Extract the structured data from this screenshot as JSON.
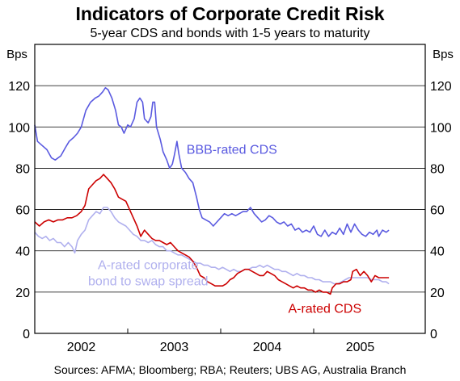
{
  "chart_data": {
    "type": "line",
    "title": "Indicators of Corporate Credit Risk",
    "subtitle": "5-year CDS and bonds with 1-5 years to maturity",
    "ylabel_left": "Bps",
    "ylabel_right": "Bps",
    "ylim": [
      0,
      140
    ],
    "yticks": [
      0,
      20,
      40,
      60,
      80,
      100,
      120
    ],
    "xlim": [
      2001.5,
      2005.7
    ],
    "x_category_labels": [
      {
        "label": "2002",
        "x": 2002.0
      },
      {
        "label": "2003",
        "x": 2003.0
      },
      {
        "label": "2004",
        "x": 2004.0
      },
      {
        "label": "2005",
        "x": 2005.0
      }
    ],
    "year_boundaries": [
      2002.5,
      2003.5,
      2004.5
    ],
    "grid": true,
    "series": [
      {
        "name": "BBB-rated CDS",
        "color": "#5a5ae0",
        "points": [
          [
            2001.5,
            101
          ],
          [
            2001.53,
            93
          ],
          [
            2001.58,
            91
          ],
          [
            2001.63,
            89
          ],
          [
            2001.68,
            85
          ],
          [
            2001.72,
            84
          ],
          [
            2001.78,
            86
          ],
          [
            2001.83,
            90
          ],
          [
            2001.87,
            93
          ],
          [
            2001.92,
            95
          ],
          [
            2001.96,
            97
          ],
          [
            2002.0,
            100
          ],
          [
            2002.05,
            108
          ],
          [
            2002.1,
            112
          ],
          [
            2002.15,
            114
          ],
          [
            2002.19,
            115
          ],
          [
            2002.23,
            117
          ],
          [
            2002.26,
            119
          ],
          [
            2002.29,
            118
          ],
          [
            2002.33,
            114
          ],
          [
            2002.37,
            108
          ],
          [
            2002.4,
            101
          ],
          [
            2002.43,
            100
          ],
          [
            2002.46,
            97
          ],
          [
            2002.5,
            101
          ],
          [
            2002.53,
            100
          ],
          [
            2002.57,
            104
          ],
          [
            2002.6,
            112
          ],
          [
            2002.63,
            114
          ],
          [
            2002.66,
            112
          ],
          [
            2002.68,
            104
          ],
          [
            2002.72,
            102
          ],
          [
            2002.75,
            105
          ],
          [
            2002.77,
            112
          ],
          [
            2002.79,
            112
          ],
          [
            2002.81,
            100
          ],
          [
            2002.85,
            94
          ],
          [
            2002.88,
            88
          ],
          [
            2002.92,
            84
          ],
          [
            2002.95,
            80
          ],
          [
            2002.98,
            82
          ],
          [
            2003.0,
            86
          ],
          [
            2003.03,
            93
          ],
          [
            2003.05,
            87
          ],
          [
            2003.08,
            80
          ],
          [
            2003.12,
            78
          ],
          [
            2003.16,
            75
          ],
          [
            2003.2,
            73
          ],
          [
            2003.24,
            66
          ],
          [
            2003.27,
            60
          ],
          [
            2003.3,
            56
          ],
          [
            2003.34,
            55
          ],
          [
            2003.38,
            54
          ],
          [
            2003.42,
            52
          ],
          [
            2003.46,
            54
          ],
          [
            2003.5,
            56
          ],
          [
            2003.54,
            58
          ],
          [
            2003.58,
            57
          ],
          [
            2003.62,
            58
          ],
          [
            2003.66,
            57
          ],
          [
            2003.7,
            58
          ],
          [
            2003.74,
            59
          ],
          [
            2003.78,
            59
          ],
          [
            2003.82,
            61
          ],
          [
            2003.86,
            58
          ],
          [
            2003.9,
            56
          ],
          [
            2003.94,
            54
          ],
          [
            2003.98,
            55
          ],
          [
            2004.02,
            57
          ],
          [
            2004.06,
            56
          ],
          [
            2004.1,
            54
          ],
          [
            2004.14,
            53
          ],
          [
            2004.18,
            54
          ],
          [
            2004.22,
            52
          ],
          [
            2004.26,
            53
          ],
          [
            2004.3,
            50
          ],
          [
            2004.34,
            51
          ],
          [
            2004.38,
            49
          ],
          [
            2004.42,
            50
          ],
          [
            2004.46,
            49
          ],
          [
            2004.5,
            52
          ],
          [
            2004.54,
            48
          ],
          [
            2004.58,
            47
          ],
          [
            2004.62,
            50
          ],
          [
            2004.66,
            47
          ],
          [
            2004.7,
            49
          ],
          [
            2004.74,
            48
          ],
          [
            2004.78,
            51
          ],
          [
            2004.82,
            48
          ],
          [
            2004.86,
            53
          ],
          [
            2004.9,
            49
          ],
          [
            2004.94,
            53
          ],
          [
            2004.98,
            50
          ],
          [
            2005.02,
            48
          ],
          [
            2005.06,
            47
          ],
          [
            2005.1,
            49
          ],
          [
            2005.14,
            48
          ],
          [
            2005.18,
            50
          ],
          [
            2005.2,
            47
          ],
          [
            2005.24,
            50
          ],
          [
            2005.28,
            49
          ],
          [
            2005.31,
            50
          ]
        ]
      },
      {
        "name": "A-rated CDS",
        "color": "#cc0000",
        "points": [
          [
            2001.5,
            54
          ],
          [
            2001.55,
            52
          ],
          [
            2001.6,
            54
          ],
          [
            2001.65,
            55
          ],
          [
            2001.7,
            54
          ],
          [
            2001.75,
            55
          ],
          [
            2001.8,
            55
          ],
          [
            2001.85,
            56
          ],
          [
            2001.9,
            56
          ],
          [
            2001.95,
            57
          ],
          [
            2002.0,
            59
          ],
          [
            2002.04,
            62
          ],
          [
            2002.08,
            70
          ],
          [
            2002.12,
            72
          ],
          [
            2002.16,
            74
          ],
          [
            2002.2,
            75
          ],
          [
            2002.24,
            77
          ],
          [
            2002.28,
            75
          ],
          [
            2002.32,
            73
          ],
          [
            2002.36,
            70
          ],
          [
            2002.4,
            66
          ],
          [
            2002.44,
            65
          ],
          [
            2002.48,
            64
          ],
          [
            2002.52,
            60
          ],
          [
            2002.56,
            56
          ],
          [
            2002.6,
            52
          ],
          [
            2002.64,
            47
          ],
          [
            2002.68,
            50
          ],
          [
            2002.72,
            48
          ],
          [
            2002.76,
            46
          ],
          [
            2002.8,
            45
          ],
          [
            2002.84,
            45
          ],
          [
            2002.88,
            44
          ],
          [
            2002.92,
            43
          ],
          [
            2002.96,
            44
          ],
          [
            2003.0,
            42
          ],
          [
            2003.04,
            40
          ],
          [
            2003.08,
            39
          ],
          [
            2003.12,
            38
          ],
          [
            2003.16,
            37
          ],
          [
            2003.2,
            35
          ],
          [
            2003.24,
            32
          ],
          [
            2003.28,
            28
          ],
          [
            2003.32,
            27
          ],
          [
            2003.36,
            25
          ],
          [
            2003.4,
            24
          ],
          [
            2003.44,
            23
          ],
          [
            2003.48,
            23
          ],
          [
            2003.52,
            23
          ],
          [
            2003.56,
            24
          ],
          [
            2003.6,
            26
          ],
          [
            2003.64,
            27
          ],
          [
            2003.68,
            29
          ],
          [
            2003.72,
            30
          ],
          [
            2003.76,
            31
          ],
          [
            2003.8,
            31
          ],
          [
            2003.84,
            30
          ],
          [
            2003.88,
            29
          ],
          [
            2003.92,
            28
          ],
          [
            2003.96,
            28
          ],
          [
            2004.0,
            30
          ],
          [
            2004.04,
            29
          ],
          [
            2004.08,
            28
          ],
          [
            2004.12,
            26
          ],
          [
            2004.16,
            25
          ],
          [
            2004.2,
            24
          ],
          [
            2004.24,
            23
          ],
          [
            2004.28,
            22
          ],
          [
            2004.32,
            23
          ],
          [
            2004.36,
            22
          ],
          [
            2004.4,
            22
          ],
          [
            2004.44,
            21
          ],
          [
            2004.48,
            21
          ],
          [
            2004.52,
            20
          ],
          [
            2004.56,
            21
          ],
          [
            2004.6,
            20
          ],
          [
            2004.64,
            20
          ],
          [
            2004.68,
            19
          ],
          [
            2004.7,
            22
          ],
          [
            2004.74,
            24
          ],
          [
            2004.78,
            24
          ],
          [
            2004.82,
            25
          ],
          [
            2004.86,
            25
          ],
          [
            2004.9,
            26
          ],
          [
            2004.92,
            30
          ],
          [
            2004.96,
            31
          ],
          [
            2005.0,
            28
          ],
          [
            2005.04,
            30
          ],
          [
            2005.08,
            28
          ],
          [
            2005.12,
            25
          ],
          [
            2005.16,
            28
          ],
          [
            2005.2,
            27
          ],
          [
            2005.24,
            27
          ],
          [
            2005.28,
            27
          ],
          [
            2005.31,
            27
          ]
        ]
      },
      {
        "name": "A-rated corporate bond to swap spread",
        "color": "#b0b0ee",
        "points": [
          [
            2001.5,
            49
          ],
          [
            2001.54,
            47
          ],
          [
            2001.58,
            46
          ],
          [
            2001.62,
            47
          ],
          [
            2001.66,
            45
          ],
          [
            2001.7,
            46
          ],
          [
            2001.74,
            44
          ],
          [
            2001.78,
            44
          ],
          [
            2001.82,
            42
          ],
          [
            2001.86,
            44
          ],
          [
            2001.9,
            42
          ],
          [
            2001.93,
            39
          ],
          [
            2001.96,
            45
          ],
          [
            2002.0,
            48
          ],
          [
            2002.04,
            50
          ],
          [
            2002.08,
            55
          ],
          [
            2002.12,
            57
          ],
          [
            2002.16,
            59
          ],
          [
            2002.2,
            58
          ],
          [
            2002.24,
            61
          ],
          [
            2002.28,
            61
          ],
          [
            2002.32,
            59
          ],
          [
            2002.36,
            56
          ],
          [
            2002.4,
            54
          ],
          [
            2002.44,
            53
          ],
          [
            2002.48,
            52
          ],
          [
            2002.52,
            50
          ],
          [
            2002.56,
            48
          ],
          [
            2002.6,
            47
          ],
          [
            2002.64,
            45
          ],
          [
            2002.68,
            45
          ],
          [
            2002.72,
            44
          ],
          [
            2002.76,
            45
          ],
          [
            2002.8,
            43
          ],
          [
            2002.84,
            42
          ],
          [
            2002.88,
            42
          ],
          [
            2002.92,
            40
          ],
          [
            2002.96,
            40
          ],
          [
            2003.0,
            39
          ],
          [
            2003.04,
            38
          ],
          [
            2003.08,
            38
          ],
          [
            2003.12,
            37
          ],
          [
            2003.16,
            36
          ],
          [
            2003.2,
            35
          ],
          [
            2003.24,
            34
          ],
          [
            2003.28,
            34
          ],
          [
            2003.32,
            33
          ],
          [
            2003.36,
            33
          ],
          [
            2003.4,
            32
          ],
          [
            2003.44,
            32
          ],
          [
            2003.48,
            31
          ],
          [
            2003.52,
            32
          ],
          [
            2003.56,
            31
          ],
          [
            2003.6,
            30
          ],
          [
            2003.64,
            31
          ],
          [
            2003.68,
            30
          ],
          [
            2003.72,
            30
          ],
          [
            2003.76,
            31
          ],
          [
            2003.8,
            31
          ],
          [
            2003.84,
            32
          ],
          [
            2003.88,
            32
          ],
          [
            2003.92,
            33
          ],
          [
            2003.96,
            32
          ],
          [
            2004.0,
            33
          ],
          [
            2004.04,
            32
          ],
          [
            2004.08,
            31
          ],
          [
            2004.12,
            31
          ],
          [
            2004.16,
            30
          ],
          [
            2004.2,
            30
          ],
          [
            2004.24,
            29
          ],
          [
            2004.28,
            28
          ],
          [
            2004.32,
            29
          ],
          [
            2004.36,
            28
          ],
          [
            2004.4,
            28
          ],
          [
            2004.44,
            27
          ],
          [
            2004.48,
            27
          ],
          [
            2004.52,
            26
          ],
          [
            2004.56,
            26
          ],
          [
            2004.6,
            25
          ],
          [
            2004.64,
            25
          ],
          [
            2004.68,
            25
          ],
          [
            2004.72,
            24
          ],
          [
            2004.76,
            24
          ],
          [
            2004.8,
            25
          ],
          [
            2004.84,
            26
          ],
          [
            2004.88,
            27
          ],
          [
            2004.92,
            27
          ],
          [
            2004.96,
            27
          ],
          [
            2005.0,
            27
          ],
          [
            2005.04,
            27
          ],
          [
            2005.08,
            27
          ],
          [
            2005.12,
            26
          ],
          [
            2005.16,
            26
          ],
          [
            2005.2,
            26
          ],
          [
            2005.24,
            25
          ],
          [
            2005.28,
            25
          ],
          [
            2005.31,
            24
          ]
        ]
      }
    ],
    "annotations": [
      {
        "key": "bbb",
        "lines": [
          "BBB-rated CDS"
        ],
        "color": "#5a5ae0",
        "x": 2003.62,
        "y": 87
      },
      {
        "key": "bond",
        "lines": [
          "A-rated corporate",
          "bond to swap spread"
        ],
        "color": "#b0b0ee",
        "x": 2002.72,
        "y": 31
      },
      {
        "key": "acds",
        "lines": [
          "A-rated CDS"
        ],
        "color": "#cc0000",
        "x": 2004.62,
        "y": 10
      }
    ],
    "source": "Sources: AFMA; Bloomberg; RBA; Reuters; UBS AG, Australia Branch"
  }
}
